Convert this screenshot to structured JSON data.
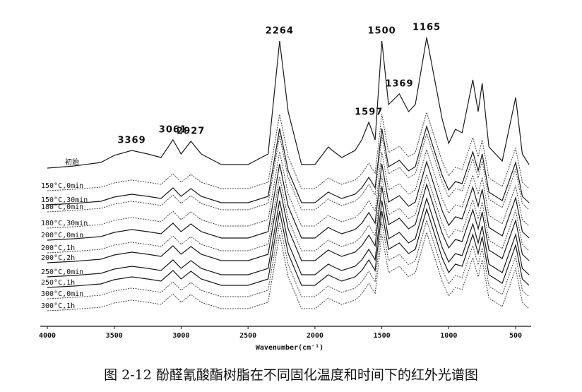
{
  "chart_data": {
    "type": "line",
    "title": "图 2-12   酚醛氰酸酯树脂在不同固化温度和时间下的红外光谱图",
    "x_label": "Wavenumber(cm⁻¹)",
    "xlim": [
      4000,
      400
    ],
    "xticks": [
      4000,
      3500,
      3000,
      2500,
      2000,
      1500,
      1000,
      500
    ],
    "ylim": [
      0,
      420
    ],
    "x": [
      4000,
      3800,
      3600,
      3500,
      3369,
      3250,
      3150,
      3061,
      3000,
      2927,
      2850,
      2700,
      2500,
      2350,
      2264,
      2200,
      2100,
      2000,
      1900,
      1870,
      1800,
      1700,
      1650,
      1597,
      1550,
      1500,
      1450,
      1369,
      1300,
      1250,
      1165,
      1100,
      1050,
      1000,
      950,
      900,
      820,
      780,
      750,
      700,
      600,
      500,
      450,
      400
    ],
    "peak_labels": [
      {
        "x": 3369,
        "label": "3369"
      },
      {
        "x": 3061,
        "label": "3061"
      },
      {
        "x": 2927,
        "label": "2927"
      },
      {
        "x": 2264,
        "label": "2264"
      },
      {
        "x": 1597,
        "label": "1597"
      },
      {
        "x": 1500,
        "label": "1500"
      },
      {
        "x": 1369,
        "label": "1369"
      },
      {
        "x": 1165,
        "label": "1165"
      }
    ],
    "series": [
      {
        "name": "初始",
        "color": "#1a1a1a",
        "dashed": false,
        "values": [
          224,
          227,
          232,
          242,
          249,
          244,
          239,
          264,
          244,
          262,
          244,
          229,
          229,
          244,
          404,
          304,
          229,
          229,
          254,
          249,
          239,
          249,
          264,
          289,
          264,
          404,
          314,
          329,
          304,
          314,
          409,
          344,
          294,
          259,
          279,
          274,
          349,
          304,
          344,
          254,
          234,
          324,
          244,
          229
        ]
      },
      {
        "name": "150°C,0min",
        "color": "#444444",
        "dashed": true,
        "values": [
          192,
          194,
          197,
          203,
          207,
          204,
          201,
          216,
          204,
          215,
          204,
          195,
          195,
          204,
          300,
          240,
          195,
          195,
          210,
          207,
          201,
          207,
          216,
          231,
          216,
          300,
          246,
          255,
          240,
          246,
          303,
          264,
          234,
          213,
          225,
          222,
          267,
          240,
          264,
          210,
          198,
          252,
          204,
          195
        ]
      },
      {
        "name": "150°C,30min",
        "color": "#1a1a1a",
        "dashed": false,
        "values": [
          172,
          174,
          177,
          183,
          187,
          184,
          181,
          196,
          184,
          195,
          184,
          175,
          175,
          184,
          280,
          220,
          175,
          175,
          190,
          187,
          181,
          187,
          196,
          211,
          196,
          280,
          226,
          235,
          220,
          226,
          283,
          244,
          214,
          193,
          205,
          202,
          247,
          220,
          244,
          190,
          178,
          232,
          184,
          175
        ]
      },
      {
        "name": "180°C,0min",
        "color": "#444444",
        "dashed": true,
        "values": [
          162,
          164,
          167,
          173,
          177,
          174,
          171,
          186,
          174,
          185,
          174,
          165,
          165,
          174,
          270,
          210,
          165,
          165,
          180,
          177,
          171,
          177,
          186,
          201,
          186,
          270,
          216,
          225,
          210,
          216,
          273,
          234,
          204,
          183,
          195,
          192,
          237,
          210,
          234,
          180,
          168,
          222,
          174,
          165
        ]
      },
      {
        "name": "180°C,30min",
        "color": "#444444",
        "dashed": true,
        "values": [
          139,
          141,
          144,
          150,
          154,
          151,
          148,
          163,
          151,
          162,
          151,
          142,
          142,
          151,
          247,
          187,
          142,
          142,
          157,
          154,
          148,
          154,
          163,
          178,
          163,
          247,
          193,
          202,
          187,
          193,
          250,
          211,
          181,
          160,
          172,
          169,
          214,
          187,
          211,
          157,
          145,
          199,
          151,
          142
        ]
      },
      {
        "name": "200°C,0min",
        "color": "#1a1a1a",
        "dashed": false,
        "values": [
          122,
          124,
          127,
          133,
          137,
          134,
          131,
          146,
          134,
          145,
          134,
          125,
          125,
          134,
          230,
          170,
          125,
          125,
          140,
          137,
          131,
          137,
          146,
          161,
          146,
          230,
          176,
          185,
          170,
          176,
          233,
          194,
          164,
          143,
          155,
          152,
          197,
          170,
          194,
          140,
          128,
          182,
          134,
          125
        ]
      },
      {
        "name": "200°C,1h",
        "color": "#444444",
        "dashed": true,
        "values": [
          104,
          106,
          109,
          115,
          119,
          116,
          113,
          128,
          116,
          127,
          116,
          107,
          107,
          116,
          212,
          152,
          107,
          107,
          122,
          119,
          113,
          119,
          128,
          143,
          128,
          212,
          158,
          167,
          152,
          158,
          215,
          176,
          146,
          125,
          137,
          134,
          179,
          152,
          176,
          122,
          110,
          164,
          116,
          107
        ]
      },
      {
        "name": "200°C,2h",
        "color": "#1a1a1a",
        "dashed": false,
        "values": [
          90,
          92,
          95,
          101,
          105,
          102,
          99,
          114,
          102,
          113,
          102,
          93,
          93,
          102,
          198,
          138,
          93,
          93,
          108,
          105,
          99,
          105,
          114,
          129,
          114,
          198,
          144,
          153,
          138,
          144,
          201,
          162,
          132,
          111,
          123,
          120,
          165,
          138,
          162,
          108,
          96,
          150,
          102,
          93
        ]
      },
      {
        "name": "250°C,0min",
        "color": "#1a1a1a",
        "dashed": false,
        "values": [
          70,
          72,
          75,
          81,
          85,
          82,
          79,
          94,
          82,
          93,
          82,
          73,
          73,
          82,
          178,
          118,
          73,
          73,
          88,
          85,
          79,
          85,
          94,
          109,
          94,
          178,
          124,
          133,
          118,
          124,
          181,
          142,
          112,
          91,
          103,
          100,
          145,
          118,
          142,
          88,
          76,
          130,
          82,
          73
        ]
      },
      {
        "name": "250°C,1h",
        "color": "#1a1a1a",
        "dashed": false,
        "values": [
          55,
          57,
          60,
          66,
          70,
          67,
          64,
          79,
          67,
          78,
          67,
          58,
          58,
          67,
          163,
          103,
          58,
          58,
          73,
          70,
          64,
          70,
          79,
          94,
          79,
          163,
          109,
          118,
          103,
          109,
          166,
          127,
          97,
          76,
          88,
          85,
          130,
          103,
          127,
          73,
          61,
          115,
          67,
          58
        ]
      },
      {
        "name": "300°C,0min",
        "color": "#444444",
        "dashed": true,
        "values": [
          39,
          41,
          44,
          50,
          54,
          51,
          48,
          63,
          51,
          62,
          51,
          42,
          42,
          51,
          147,
          87,
          42,
          42,
          57,
          54,
          48,
          54,
          63,
          78,
          63,
          147,
          93,
          102,
          87,
          93,
          150,
          111,
          81,
          60,
          72,
          69,
          114,
          87,
          111,
          57,
          45,
          99,
          51,
          42
        ]
      },
      {
        "name": "300°C,1h",
        "color": "#444444",
        "dashed": true,
        "values": [
          22,
          24,
          27,
          33,
          37,
          34,
          31,
          46,
          34,
          45,
          34,
          25,
          25,
          34,
          130,
          70,
          25,
          25,
          40,
          37,
          31,
          37,
          46,
          61,
          46,
          130,
          76,
          85,
          70,
          76,
          133,
          94,
          64,
          43,
          55,
          52,
          97,
          70,
          94,
          40,
          28,
          82,
          34,
          25
        ]
      }
    ]
  }
}
